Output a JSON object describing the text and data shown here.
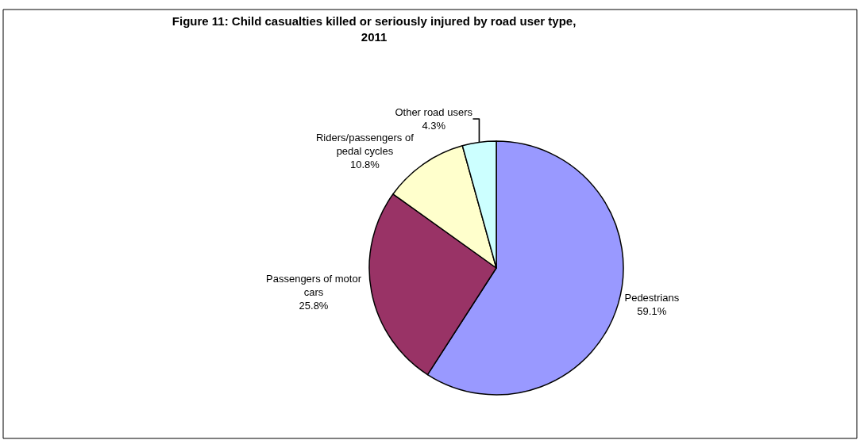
{
  "chart_data": {
    "type": "pie",
    "title": "Figure 11: Child casualties killed or seriously injured by road user type, 2011",
    "categories": [
      "Pedestrians",
      "Passengers of motor cars",
      "Riders/passengers of pedal cycles",
      "Other road users"
    ],
    "values": [
      59.1,
      25.8,
      10.8,
      4.3
    ],
    "value_labels": [
      "59.1%",
      "25.8%",
      "10.8%",
      "4.3%"
    ],
    "colors": [
      "#9999ff",
      "#993366",
      "#ffffcc",
      "#ccffff"
    ]
  }
}
